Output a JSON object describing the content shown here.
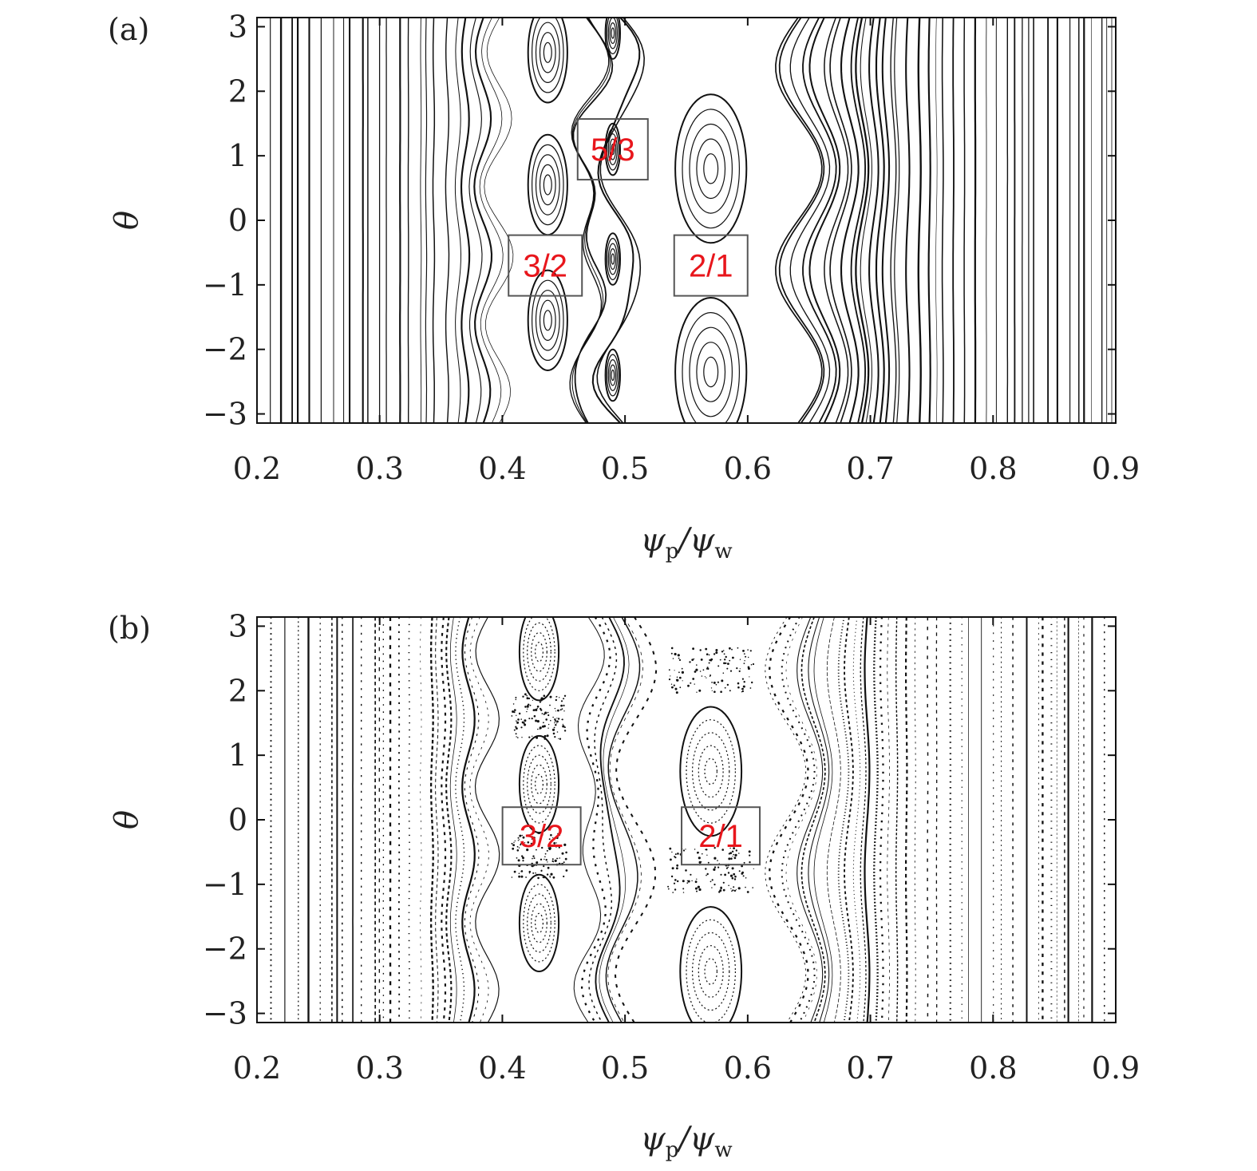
{
  "chart_data": [
    {
      "type": "scatter",
      "panel_label": "(a)",
      "xlabel": "ψ_p/ψ_w",
      "ylabel": "θ",
      "xlim": [
        0.2,
        0.9
      ],
      "ylim": [
        -3.14159,
        3.14159
      ],
      "xticks": [
        0.2,
        0.3,
        0.4,
        0.5,
        0.6,
        0.7,
        0.8,
        0.9
      ],
      "xtick_labels": [
        "0.2",
        "0.3",
        "0.4",
        "0.5",
        "0.6",
        "0.7",
        "0.8",
        "0.9"
      ],
      "yticks": [
        3,
        2,
        1,
        0,
        -1,
        -2,
        -3
      ],
      "ytick_labels": [
        "3",
        "2",
        "1",
        "0",
        "−1",
        "−2",
        "−3"
      ],
      "grid": false,
      "islands": [
        {
          "name": "3/2",
          "center_x": 0.437,
          "centers_theta": [
            2.6,
            0.55,
            -1.55
          ],
          "width": 0.032,
          "height": 1.55
        },
        {
          "name": "5/3",
          "center_x": 0.49,
          "centers_theta": [
            2.9,
            1.1,
            -0.6,
            -2.4
          ],
          "width": 0.012,
          "height": 0.8
        },
        {
          "name": "2/1",
          "center_x": 0.57,
          "centers_theta": [
            0.8,
            -2.35
          ],
          "width": 0.058,
          "height": 2.3
        }
      ],
      "annotations": [
        {
          "text": "5/3",
          "x": 0.49,
          "y": 1.1
        },
        {
          "text": "3/2",
          "x": 0.435,
          "y": -0.7
        },
        {
          "text": "2/1",
          "x": 0.57,
          "y": -0.7
        }
      ]
    },
    {
      "type": "scatter",
      "panel_label": "(b)",
      "xlabel": "ψ_p/ψ_w",
      "ylabel": "θ",
      "xlim": [
        0.2,
        0.9
      ],
      "ylim": [
        -3.14159,
        3.14159
      ],
      "xticks": [
        0.2,
        0.3,
        0.4,
        0.5,
        0.6,
        0.7,
        0.8,
        0.9
      ],
      "xtick_labels": [
        "0.2",
        "0.3",
        "0.4",
        "0.5",
        "0.6",
        "0.7",
        "0.8",
        "0.9"
      ],
      "yticks": [
        3,
        2,
        1,
        0,
        -1,
        -2,
        -3
      ],
      "ytick_labels": [
        "3",
        "2",
        "1",
        "0",
        "−1",
        "−2",
        "−3"
      ],
      "grid": false,
      "islands": [
        {
          "name": "3/2",
          "center_x": 0.43,
          "centers_theta": [
            2.6,
            0.55,
            -1.6
          ],
          "width": 0.032,
          "height": 1.5
        },
        {
          "name": "2/1",
          "center_x": 0.57,
          "centers_theta": [
            0.75,
            -2.35
          ],
          "width": 0.05,
          "height": 2.0
        }
      ],
      "annotations": [
        {
          "text": "3/2",
          "x": 0.432,
          "y": -0.25
        },
        {
          "text": "2/1",
          "x": 0.578,
          "y": -0.25
        }
      ]
    }
  ]
}
